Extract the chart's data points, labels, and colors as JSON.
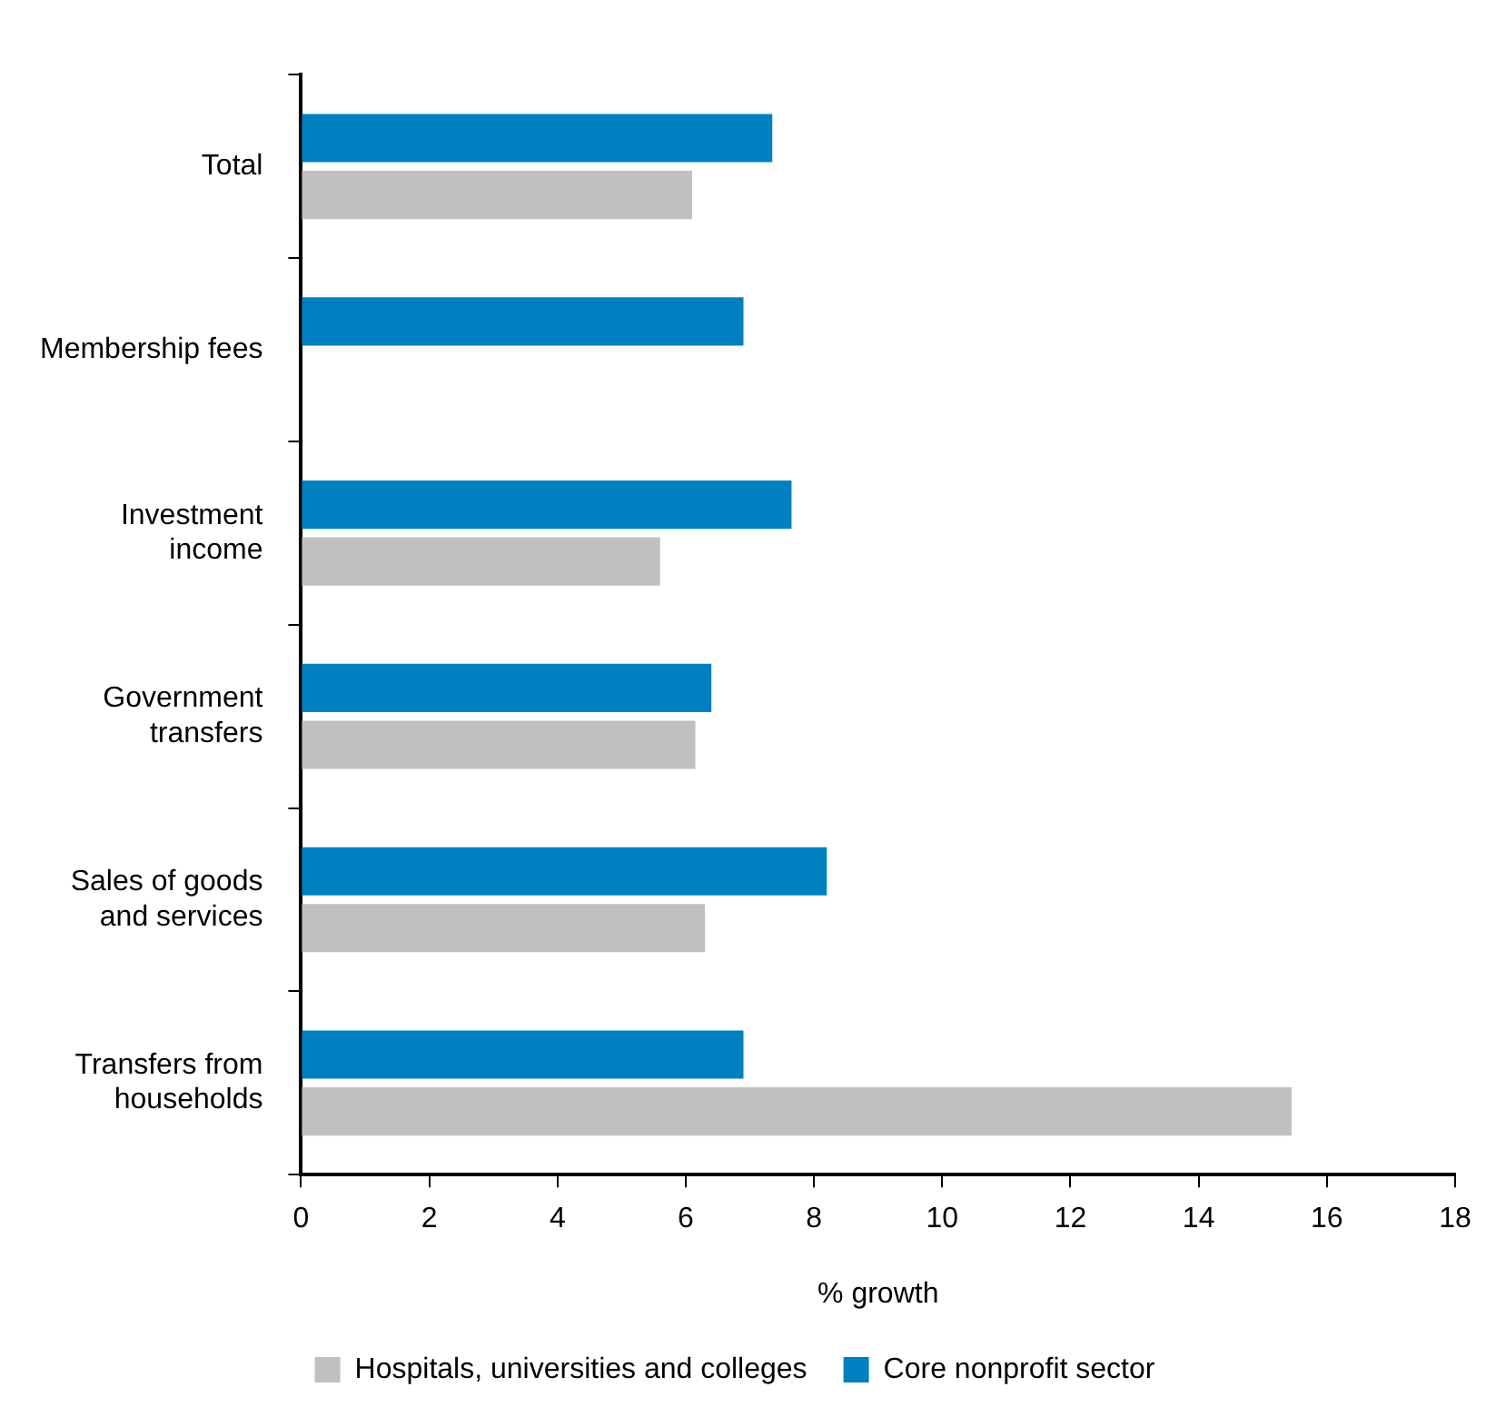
{
  "chart_data": {
    "type": "bar",
    "orientation": "horizontal",
    "xlabel": "% growth",
    "categories": [
      "Total",
      "Membership fees",
      "Investment income",
      "Government transfers",
      "Sales of goods and services",
      "Transfers from households"
    ],
    "series": [
      {
        "name": "Core nonprofit sector",
        "color": "#0080c0",
        "values": [
          7.35,
          6.9,
          7.65,
          6.4,
          8.2,
          6.9
        ]
      },
      {
        "name": "Hospitals, universities and colleges",
        "color": "#c0c0c0",
        "values": [
          6.1,
          null,
          5.6,
          6.15,
          6.3,
          15.45
        ]
      }
    ],
    "xlim": [
      0,
      18
    ],
    "xticks": [
      0,
      2,
      4,
      6,
      8,
      10,
      12,
      14,
      16,
      18
    ],
    "grid": false,
    "legend": "bottom"
  }
}
